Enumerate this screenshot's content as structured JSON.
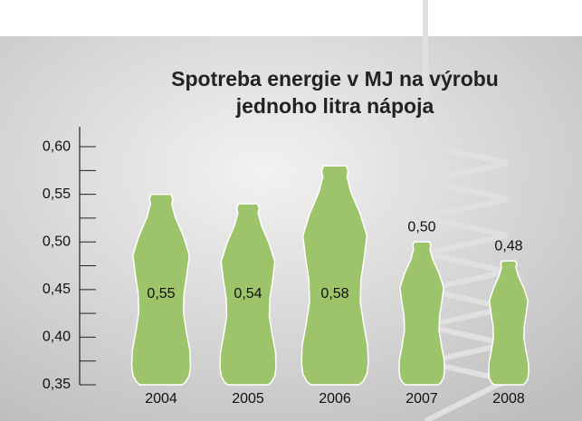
{
  "chart_data": {
    "type": "bottle",
    "title": "Spotreba energie v MJ na výrobu jednoho litra nápoja",
    "categories": [
      "2004",
      "2005",
      "2006",
      "2007",
      "2008"
    ],
    "values": [
      0.55,
      0.54,
      0.58,
      0.5,
      0.48
    ],
    "value_labels": [
      "0,55",
      "0,54",
      "0,58",
      "0,50",
      "0,48"
    ],
    "color": "#9dc36b",
    "ylim": [
      0.35,
      0.62
    ],
    "yticks": [
      {
        "value": 0.35,
        "label": "0,35"
      },
      {
        "value": 0.4,
        "label": "0,40"
      },
      {
        "value": 0.45,
        "label": "0,45"
      },
      {
        "value": 0.5,
        "label": "0,50"
      },
      {
        "value": 0.55,
        "label": "0,55"
      },
      {
        "value": 0.6,
        "label": "0,60"
      }
    ],
    "minor_yticks": [
      0.375,
      0.425,
      0.475,
      0.525,
      0.575
    ]
  }
}
